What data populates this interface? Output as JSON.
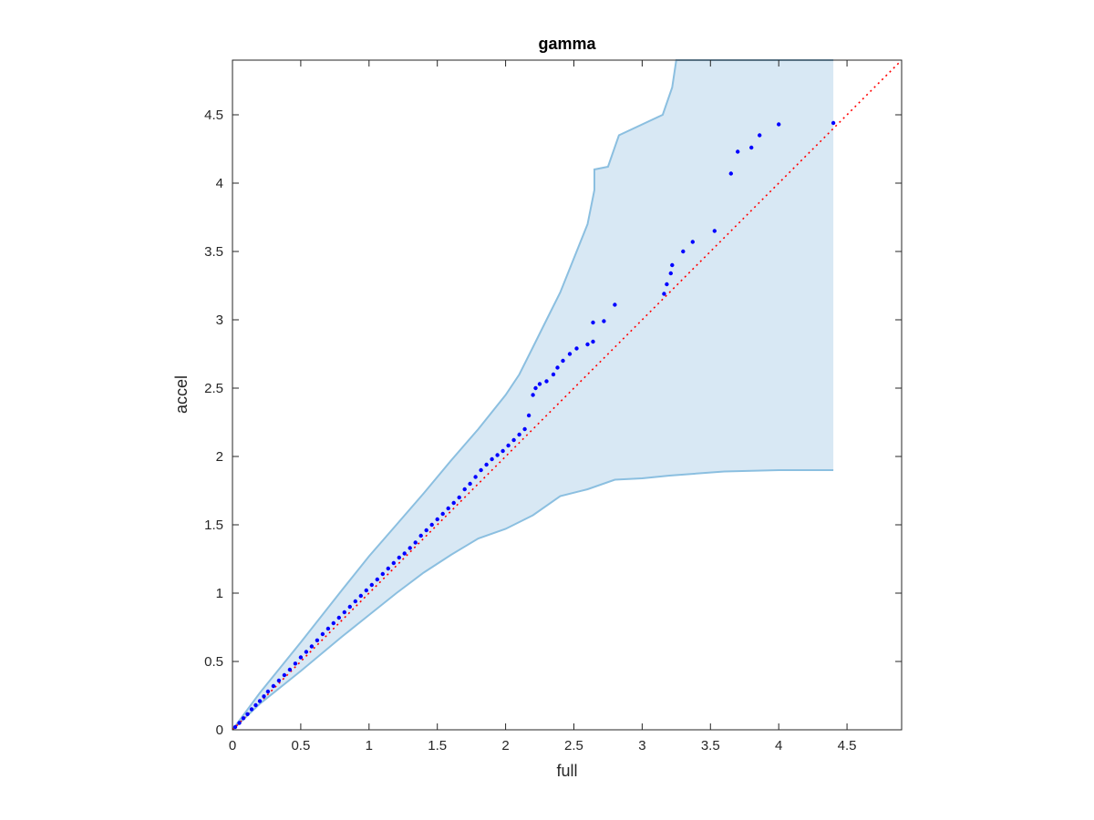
{
  "chart_data": {
    "type": "scatter",
    "title": "gamma",
    "xlabel": "full",
    "ylabel": "accel",
    "xlim": [
      0,
      4.9
    ],
    "ylim": [
      0,
      4.9
    ],
    "xticks": [
      "0",
      "0.5",
      "1",
      "1.5",
      "2",
      "2.5",
      "3",
      "3.5",
      "4",
      "4.5"
    ],
    "yticks": [
      "0",
      "0.5",
      "1",
      "1.5",
      "2",
      "2.5",
      "3",
      "3.5",
      "4",
      "4.5"
    ],
    "grid": false,
    "reference_line": {
      "style": "dotted",
      "color": "#ff0000",
      "x": [
        0,
        4.9
      ],
      "y": [
        0,
        4.9
      ]
    },
    "band": {
      "color": "#d8e8f4",
      "edge_color": "#8bbfe0",
      "upper": [
        [
          0,
          0
        ],
        [
          0.2,
          0.27
        ],
        [
          0.5,
          0.64
        ],
        [
          0.8,
          1.02
        ],
        [
          1.0,
          1.27
        ],
        [
          1.2,
          1.5
        ],
        [
          1.4,
          1.73
        ],
        [
          1.6,
          1.97
        ],
        [
          1.8,
          2.2
        ],
        [
          2.0,
          2.45
        ],
        [
          2.1,
          2.6
        ],
        [
          2.2,
          2.8
        ],
        [
          2.3,
          3.0
        ],
        [
          2.4,
          3.2
        ],
        [
          2.5,
          3.45
        ],
        [
          2.6,
          3.7
        ],
        [
          2.65,
          3.95
        ],
        [
          2.65,
          4.1
        ],
        [
          2.75,
          4.12
        ],
        [
          2.83,
          4.35
        ],
        [
          3.15,
          4.5
        ],
        [
          3.22,
          4.7
        ],
        [
          3.25,
          4.9
        ],
        [
          4.4,
          4.9
        ]
      ],
      "lower": [
        [
          0,
          0
        ],
        [
          0.2,
          0.19
        ],
        [
          0.5,
          0.43
        ],
        [
          0.8,
          0.68
        ],
        [
          1.0,
          0.84
        ],
        [
          1.2,
          1.0
        ],
        [
          1.4,
          1.15
        ],
        [
          1.6,
          1.28
        ],
        [
          1.8,
          1.4
        ],
        [
          2.0,
          1.47
        ],
        [
          2.2,
          1.57
        ],
        [
          2.4,
          1.71
        ],
        [
          2.6,
          1.76
        ],
        [
          2.8,
          1.83
        ],
        [
          3.0,
          1.84
        ],
        [
          3.2,
          1.86
        ],
        [
          3.6,
          1.89
        ],
        [
          4.0,
          1.9
        ],
        [
          4.4,
          1.9
        ]
      ]
    },
    "series": [
      {
        "color": "#0000ff",
        "points": [
          [
            0.02,
            0.02
          ],
          [
            0.05,
            0.05
          ],
          [
            0.08,
            0.085
          ],
          [
            0.11,
            0.115
          ],
          [
            0.14,
            0.15
          ],
          [
            0.17,
            0.18
          ],
          [
            0.2,
            0.21
          ],
          [
            0.23,
            0.245
          ],
          [
            0.26,
            0.28
          ],
          [
            0.3,
            0.32
          ],
          [
            0.34,
            0.36
          ],
          [
            0.38,
            0.4
          ],
          [
            0.42,
            0.44
          ],
          [
            0.46,
            0.485
          ],
          [
            0.5,
            0.53
          ],
          [
            0.54,
            0.57
          ],
          [
            0.58,
            0.61
          ],
          [
            0.62,
            0.655
          ],
          [
            0.66,
            0.7
          ],
          [
            0.7,
            0.74
          ],
          [
            0.74,
            0.78
          ],
          [
            0.78,
            0.82
          ],
          [
            0.82,
            0.86
          ],
          [
            0.86,
            0.9
          ],
          [
            0.9,
            0.94
          ],
          [
            0.94,
            0.98
          ],
          [
            0.98,
            1.02
          ],
          [
            1.02,
            1.06
          ],
          [
            1.06,
            1.1
          ],
          [
            1.1,
            1.14
          ],
          [
            1.14,
            1.18
          ],
          [
            1.18,
            1.22
          ],
          [
            1.22,
            1.26
          ],
          [
            1.26,
            1.29
          ],
          [
            1.3,
            1.33
          ],
          [
            1.34,
            1.37
          ],
          [
            1.38,
            1.42
          ],
          [
            1.42,
            1.46
          ],
          [
            1.46,
            1.5
          ],
          [
            1.5,
            1.54
          ],
          [
            1.54,
            1.58
          ],
          [
            1.58,
            1.62
          ],
          [
            1.62,
            1.66
          ],
          [
            1.66,
            1.7
          ],
          [
            1.7,
            1.76
          ],
          [
            1.74,
            1.8
          ],
          [
            1.78,
            1.85
          ],
          [
            1.82,
            1.9
          ],
          [
            1.86,
            1.94
          ],
          [
            1.9,
            1.98
          ],
          [
            1.94,
            2.01
          ],
          [
            1.98,
            2.04
          ],
          [
            2.02,
            2.08
          ],
          [
            2.06,
            2.12
          ],
          [
            2.1,
            2.16
          ],
          [
            2.14,
            2.2
          ],
          [
            2.17,
            2.3
          ],
          [
            2.2,
            2.45
          ],
          [
            2.22,
            2.5
          ],
          [
            2.25,
            2.53
          ],
          [
            2.3,
            2.55
          ],
          [
            2.35,
            2.6
          ],
          [
            2.38,
            2.65
          ],
          [
            2.42,
            2.7
          ],
          [
            2.47,
            2.75
          ],
          [
            2.52,
            2.79
          ],
          [
            2.6,
            2.82
          ],
          [
            2.64,
            2.84
          ],
          [
            2.64,
            2.98
          ],
          [
            2.72,
            2.99
          ],
          [
            2.8,
            3.11
          ],
          [
            3.16,
            3.19
          ],
          [
            3.18,
            3.26
          ],
          [
            3.21,
            3.34
          ],
          [
            3.22,
            3.4
          ],
          [
            3.3,
            3.5
          ],
          [
            3.37,
            3.57
          ],
          [
            3.53,
            3.65
          ],
          [
            3.65,
            4.07
          ],
          [
            3.7,
            4.23
          ],
          [
            3.8,
            4.26
          ],
          [
            3.86,
            4.35
          ],
          [
            4.0,
            4.43
          ],
          [
            4.4,
            4.44
          ]
        ]
      }
    ]
  }
}
